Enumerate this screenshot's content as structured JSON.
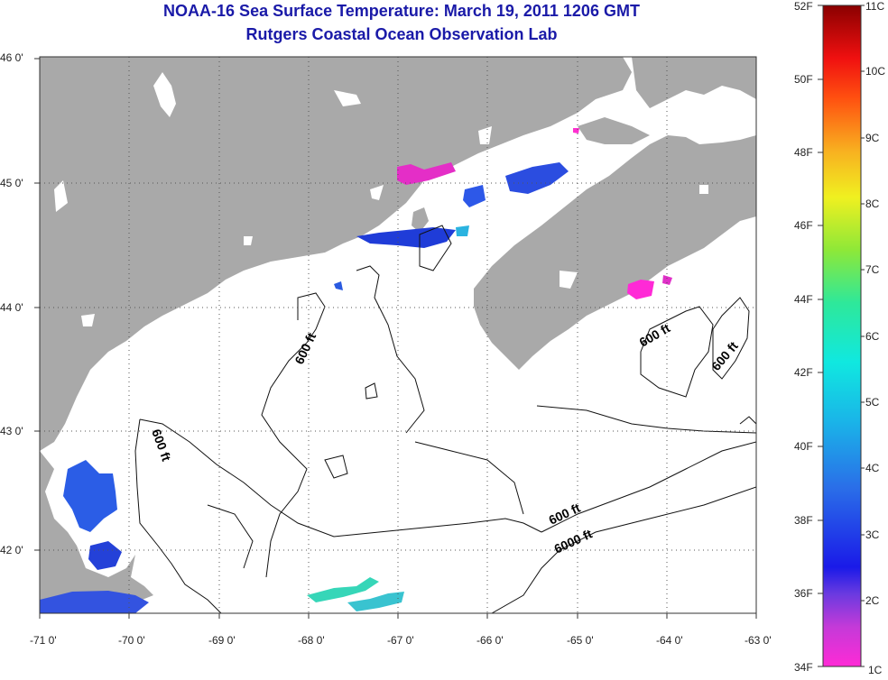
{
  "title": "NOAA-16 Sea Surface Temperature:  March 19, 2011 1206 GMT",
  "subtitle": "Rutgers Coastal Ocean Observation Lab",
  "map": {
    "lon_ticks": [
      "-71 0'",
      "-70 0'",
      "-69 0'",
      "-68 0'",
      "-67 0'",
      "-66 0'",
      "-65 0'",
      "-64 0'",
      "-63 0'"
    ],
    "lat_ticks": [
      "46 0'",
      "45 0'",
      "44 0'",
      "43 0'",
      "42 0'"
    ],
    "contour_labels": [
      "600 ft",
      "600 ft",
      "600 ft",
      "600 ft",
      "600 ft",
      "6000 ft"
    ],
    "colors": {
      "land": "#a9a9a9",
      "ocean": "#ffffff",
      "grid": "#555555"
    }
  },
  "colorbar": {
    "fahrenheit": [
      "52F",
      "50F",
      "48F",
      "46F",
      "44F",
      "42F",
      "40F",
      "38F",
      "36F",
      "34F"
    ],
    "celsius": [
      "11C",
      "10C",
      "9C",
      "8C",
      "7C",
      "6C",
      "5C",
      "4C",
      "3C",
      "2C",
      "1C"
    ]
  }
}
